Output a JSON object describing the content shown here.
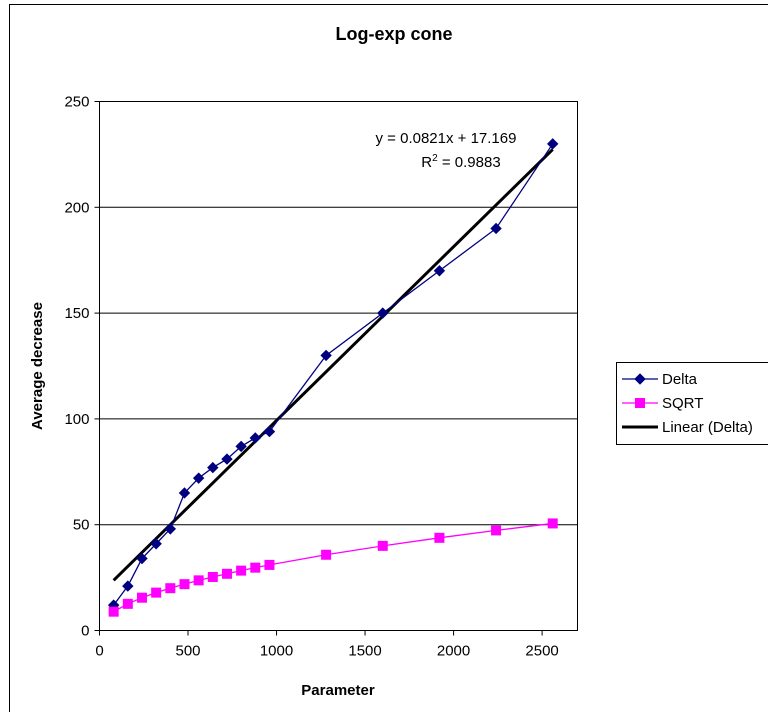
{
  "chart_data": {
    "type": "scatter",
    "title": "Log-exp cone",
    "xlabel": "Parameter",
    "ylabel": "Average decrease",
    "xlim": [
      0,
      2700
    ],
    "ylim": [
      0,
      250
    ],
    "x_ticks": [
      0,
      500,
      1000,
      1500,
      2000,
      2500
    ],
    "y_ticks": [
      0,
      50,
      100,
      150,
      200,
      250
    ],
    "grid": "horizontal",
    "legend_position": "right",
    "series": [
      {
        "name": "Delta",
        "marker": "diamond",
        "color": "#000080",
        "x": [
          80,
          160,
          240,
          320,
          400,
          480,
          560,
          640,
          720,
          800,
          880,
          960,
          1280,
          1600,
          1920,
          2240,
          2560
        ],
        "y": [
          12,
          21,
          34,
          41,
          48,
          65,
          72,
          77,
          81,
          87,
          91,
          94,
          130,
          150,
          170,
          190,
          230
        ]
      },
      {
        "name": "SQRT",
        "marker": "square",
        "color": "#ff00ff",
        "x": [
          80,
          160,
          240,
          320,
          400,
          480,
          560,
          640,
          720,
          800,
          880,
          960,
          1280,
          1600,
          1920,
          2240,
          2560
        ],
        "y": [
          8.9,
          12.6,
          15.5,
          17.9,
          20,
          21.9,
          23.7,
          25.3,
          26.8,
          28.3,
          29.7,
          31,
          35.8,
          40,
          43.8,
          47.3,
          50.6
        ]
      }
    ],
    "trendline": {
      "name": "Linear (Delta)",
      "color": "#000000",
      "slope": 0.0821,
      "intercept": 17.169,
      "x_range": [
        80,
        2560
      ],
      "equation_label": "y = 0.0821x + 17.169",
      "r2_prefix": "R",
      "r2_sup": "2",
      "r2_value": " = 0.9883"
    }
  }
}
